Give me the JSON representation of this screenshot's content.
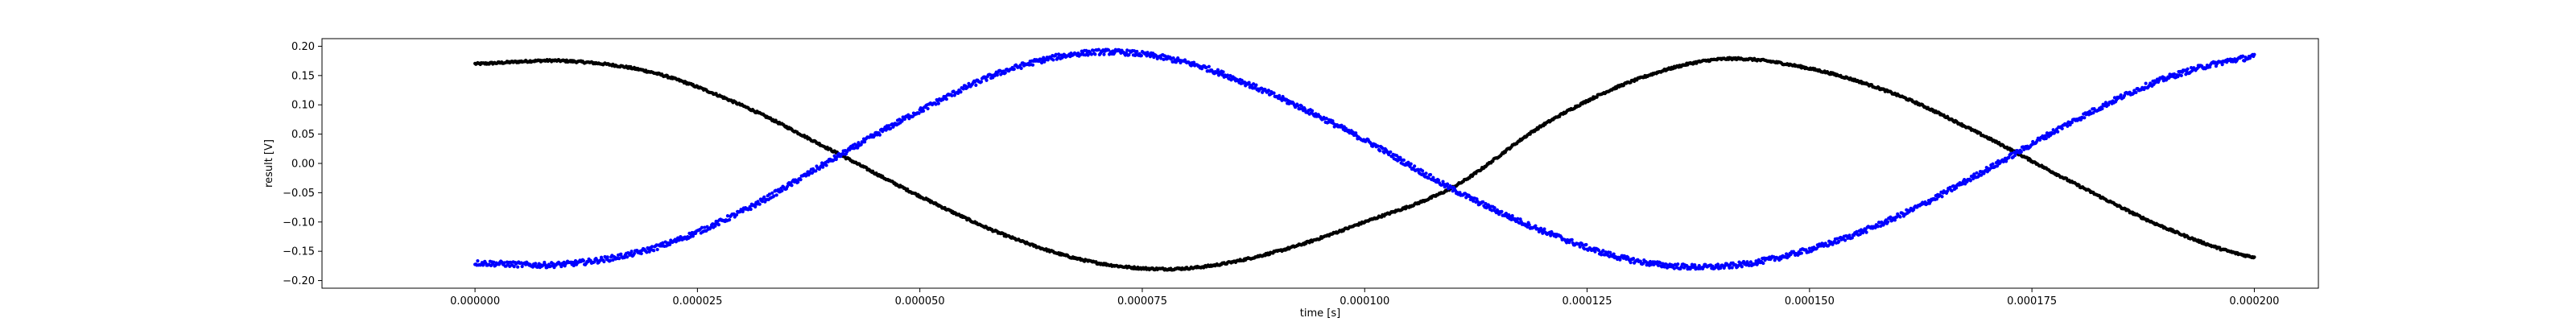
{
  "chart_data": {
    "type": "scatter",
    "title": "",
    "xlabel": "time [s]",
    "ylabel": "result [V]",
    "xlim": [
      -1.72e-05,
      0.0002072
    ],
    "ylim": [
      -0.213,
      0.213
    ],
    "grid": false,
    "xticks": [
      0,
      2.5e-05,
      5e-05,
      7.5e-05,
      0.0001,
      0.000125,
      0.00015,
      0.000175,
      0.0002
    ],
    "xtick_labels": [
      "0.000000",
      "0.000025",
      "0.000050",
      "0.000075",
      "0.000100",
      "0.000125",
      "0.000150",
      "0.000175",
      "0.000200"
    ],
    "yticks": [
      0.2,
      0.15,
      0.1,
      0.05,
      0.0,
      -0.05,
      -0.1,
      -0.15,
      -0.2
    ],
    "ytick_labels": [
      "0.20",
      "0.15",
      "0.10",
      "0.05",
      "0.00",
      "−0.05",
      "−0.10",
      "−0.15",
      "−0.20"
    ],
    "series": [
      {
        "color": "#000000",
        "x": [
          0,
          1e-05,
          2e-05,
          3e-05,
          4e-05,
          5e-05,
          6e-05,
          7e-05,
          8e-05,
          9e-05,
          0.0001,
          0.00011,
          0.00012,
          0.00013,
          0.00014,
          0.00015,
          0.00016,
          0.00017,
          0.00018,
          0.00019,
          0.0002
        ],
        "values": [
          0.17,
          0.175,
          0.155,
          0.099,
          0.023,
          -0.056,
          -0.125,
          -0.17,
          -0.179,
          -0.151,
          -0.1,
          -0.04,
          0.065,
          0.14,
          0.178,
          0.162,
          0.116,
          0.044,
          -0.036,
          -0.11,
          -0.16
        ]
      },
      {
        "color": "#0000ff",
        "x": [
          0,
          1e-05,
          2e-05,
          3e-05,
          4e-05,
          5e-05,
          6e-05,
          7e-05,
          8e-05,
          9e-05,
          0.0001,
          0.00011,
          0.00012,
          0.00013,
          0.00014,
          0.00015,
          0.00016,
          0.00017,
          0.00018,
          0.00019,
          0.0002
        ],
        "values": [
          -0.17,
          -0.172,
          -0.145,
          -0.082,
          0.005,
          0.09,
          0.16,
          0.19,
          0.172,
          0.115,
          0.04,
          -0.045,
          -0.115,
          -0.165,
          -0.176,
          -0.147,
          -0.09,
          -0.01,
          0.075,
          0.145,
          0.182
        ]
      }
    ]
  }
}
